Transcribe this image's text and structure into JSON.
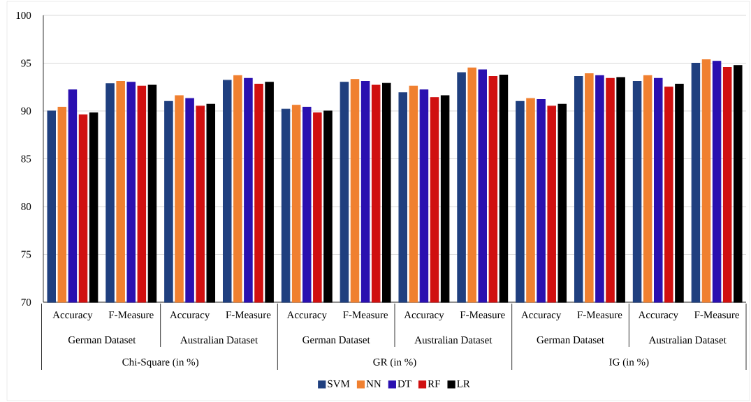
{
  "chart_data": {
    "type": "bar",
    "categories": [
      "Accuracy",
      "F-Measure",
      "Accuracy",
      "F-Measure",
      "Accuracy",
      "F-Measure",
      "Accuracy",
      "F-Measure",
      "Accuracy",
      "F-Measure",
      "Accuracy",
      "F-Measure"
    ],
    "series": [
      {
        "name": "SVM",
        "color": "#1f3f7f",
        "values": [
          90.0,
          92.85,
          91.0,
          93.2,
          90.2,
          93.0,
          91.9,
          94.0,
          91.0,
          93.6,
          93.1,
          95.0
        ]
      },
      {
        "name": "NN",
        "color": "#f08030",
        "values": [
          90.4,
          93.1,
          91.6,
          93.7,
          90.6,
          93.3,
          92.6,
          94.5,
          91.3,
          93.9,
          93.7,
          95.35
        ]
      },
      {
        "name": "DT",
        "color": "#2a10b0",
        "values": [
          92.2,
          93.0,
          91.3,
          93.4,
          90.4,
          93.1,
          92.2,
          94.3,
          91.2,
          93.7,
          93.4,
          95.2
        ]
      },
      {
        "name": "RF",
        "color": "#d01010",
        "values": [
          89.6,
          92.6,
          90.5,
          92.8,
          89.8,
          92.7,
          91.4,
          93.6,
          90.5,
          93.4,
          92.5,
          94.55
        ]
      },
      {
        "name": "LR",
        "color": "#000000",
        "values": [
          89.8,
          92.7,
          90.7,
          93.0,
          90.0,
          92.9,
          91.6,
          93.75,
          90.7,
          93.5,
          92.8,
          94.75
        ]
      }
    ],
    "ylim": [
      70,
      100
    ],
    "yticks": [
      70,
      75,
      80,
      85,
      90,
      95,
      100
    ],
    "grid": "y",
    "legend": "bottom",
    "annotations": [
      "German Dataset",
      "Australian Dataset",
      "German Dataset",
      "Australian Dataset",
      "German Dataset",
      "Australian Dataset",
      "Chi-Square (in %)",
      "GR (in %)",
      "IG (in %)"
    ]
  }
}
